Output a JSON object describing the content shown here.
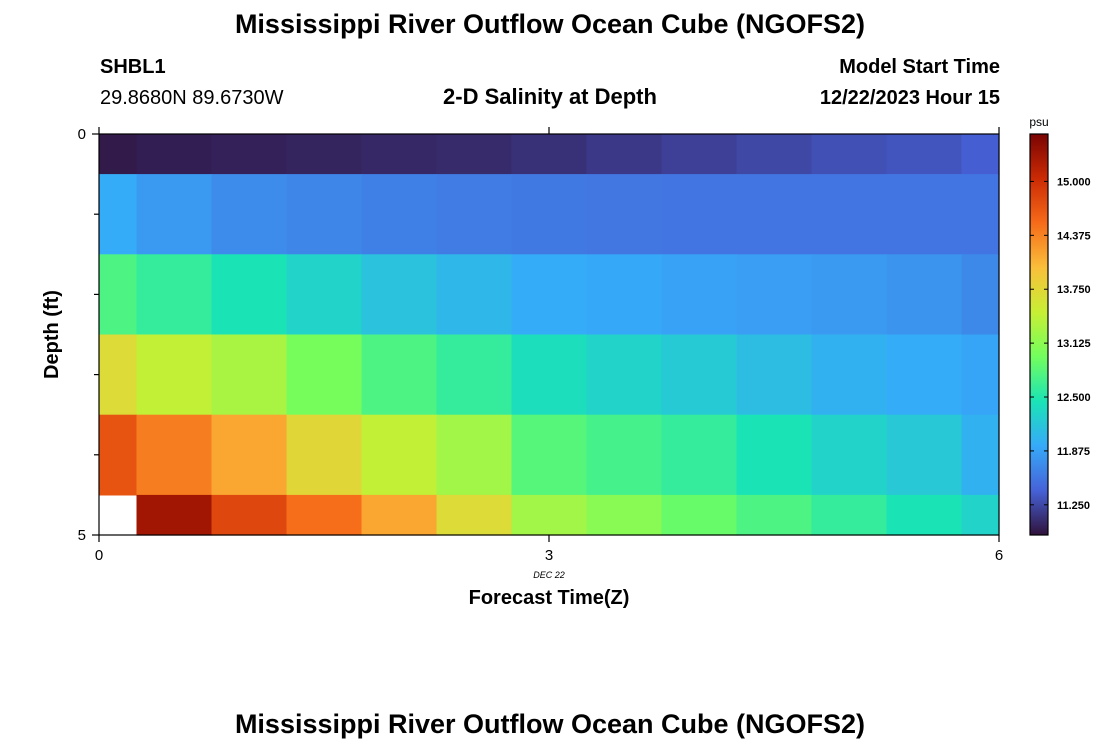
{
  "page": {
    "title": "Mississippi River Outflow Ocean Cube (NGOFS2)",
    "station_id": "SHBL1",
    "station_coords": "29.8680N  89.6730W",
    "plot_title": "2-D Salinity at Depth",
    "start_label": "Model Start Time",
    "start_time": "12/22/2023 Hour 15",
    "footer_title": "Mississippi River Outflow Ocean Cube (NGOFS2)"
  },
  "chart_data": {
    "type": "heatmap",
    "title": "2-D Salinity at Depth",
    "xlabel": "Forecast Time(Z)",
    "ylabel": "Depth (ft)",
    "date_label": "DEC 22",
    "xlim": [
      0,
      6
    ],
    "ylim": [
      0,
      5
    ],
    "x_ticks": [
      0,
      3,
      6
    ],
    "y_ticks": [
      0,
      5
    ],
    "x_edges": [
      0,
      0.25,
      0.75,
      1.25,
      1.75,
      2.25,
      2.75,
      3.25,
      3.75,
      4.25,
      4.75,
      5.25,
      5.75,
      6
    ],
    "y_edges": [
      0,
      0.5,
      1.5,
      2.5,
      3.5,
      4.5,
      5
    ],
    "values": [
      [
        10.95,
        10.98,
        11.0,
        11.02,
        11.04,
        11.06,
        11.1,
        11.15,
        11.2,
        11.25,
        11.3,
        11.33,
        11.4
      ],
      [
        11.95,
        11.82,
        11.72,
        11.68,
        11.63,
        11.6,
        11.58,
        11.56,
        11.55,
        11.55,
        11.55,
        11.55,
        11.55
      ],
      [
        12.75,
        12.6,
        12.45,
        12.3,
        12.15,
        12.05,
        11.95,
        11.92,
        11.88,
        11.85,
        11.82,
        11.78,
        11.7
      ],
      [
        13.7,
        13.45,
        13.3,
        13.0,
        12.75,
        12.6,
        12.4,
        12.3,
        12.22,
        12.1,
        12.0,
        11.95,
        11.9
      ],
      [
        14.7,
        14.4,
        14.15,
        13.75,
        13.45,
        13.25,
        12.8,
        12.7,
        12.6,
        12.45,
        12.3,
        12.2,
        12.0
      ],
      [
        null,
        15.3,
        14.8,
        14.5,
        14.15,
        13.7,
        13.25,
        13.1,
        12.9,
        12.75,
        12.6,
        12.45,
        12.3
      ]
    ],
    "colorbar": {
      "label": "psu",
      "vmin": 10.9,
      "vmax": 15.55,
      "ticks": [
        "11.250",
        "11.875",
        "12.500",
        "13.125",
        "13.750",
        "14.375",
        "15.000"
      ],
      "colors": [
        "#30123b",
        "#4662d8",
        "#36aaf9",
        "#1ae4b6",
        "#72fe5e",
        "#c7ef34",
        "#fabf3a",
        "#f66b19",
        "#cb2a04",
        "#7a0403"
      ]
    }
  }
}
